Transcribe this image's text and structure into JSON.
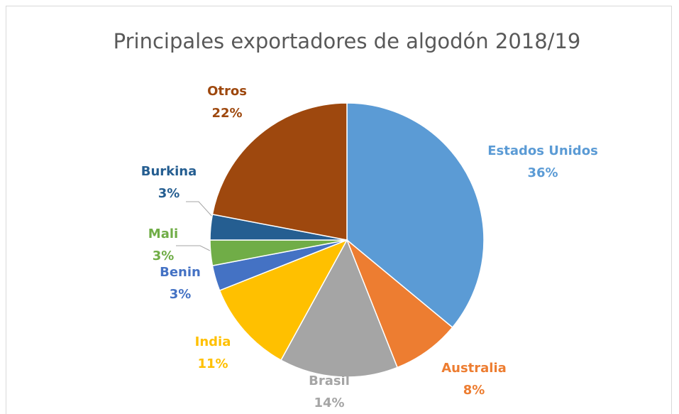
{
  "chart_data": {
    "type": "pie",
    "title": "Principales exportadores de algodón 2018/19",
    "categories": [
      "Estados Unidos",
      "Australia",
      "Brasil",
      "India",
      "Benin",
      "Mali",
      "Burkina",
      "Otros"
    ],
    "values": [
      36,
      8,
      14,
      11,
      3,
      3,
      3,
      22
    ],
    "value_labels": [
      "36%",
      "8%",
      "14%",
      "11%",
      "3%",
      "3%",
      "3%",
      "22%"
    ],
    "colors": [
      "#5b9bd5",
      "#ed7d31",
      "#a5a5a5",
      "#ffc000",
      "#4472c4",
      "#70ad47",
      "#255e91",
      "#9e480e"
    ]
  }
}
